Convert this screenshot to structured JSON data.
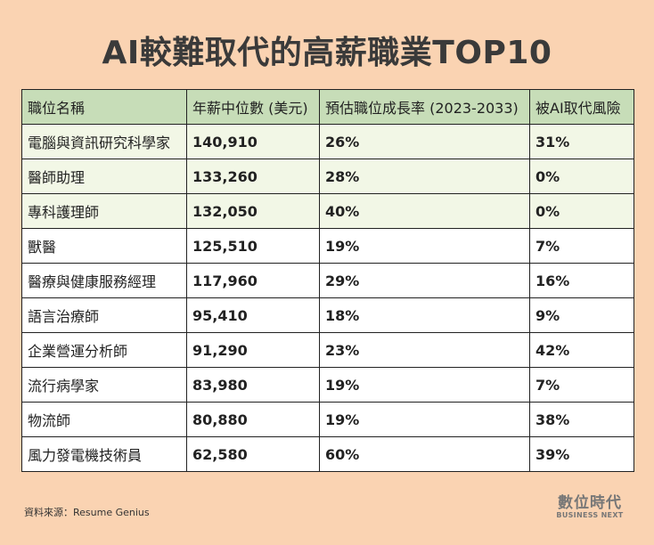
{
  "title": "AI較難取代的高薪職業TOP10",
  "source": "資料來源：Resume Genius",
  "logo": {
    "zh": "數位時代",
    "en": "BUSINESS NEXT"
  },
  "chart_data": {
    "type": "table",
    "title": "AI較難取代的高薪職業TOP10",
    "columns": [
      "職位名稱",
      "年薪中位數 (美元)",
      "預估職位成長率 (2023-2033)",
      "被AI取代風險"
    ],
    "rows": [
      [
        "電腦與資訊研究科學家",
        "140,910",
        "26%",
        "31%"
      ],
      [
        "醫師助理",
        "133,260",
        "28%",
        "0%"
      ],
      [
        "專科護理師",
        "132,050",
        "40%",
        "0%"
      ],
      [
        "獸醫",
        "125,510",
        "19%",
        "7%"
      ],
      [
        "醫療與健康服務經理",
        "117,960",
        "29%",
        "16%"
      ],
      [
        "語言治療師",
        "95,410",
        "18%",
        "9%"
      ],
      [
        "企業營運分析師",
        "91,290",
        "23%",
        "42%"
      ],
      [
        "流行病學家",
        "83,980",
        "19%",
        "7%"
      ],
      [
        "物流師",
        "80,880",
        "19%",
        "38%"
      ],
      [
        "風力發電機技術員",
        "62,580",
        "60%",
        "39%"
      ]
    ],
    "highlighted_rows": 3,
    "colors": {
      "background": "#fad3b2",
      "header": "#c7ddb8",
      "highlight_row": "#f2f7e6",
      "row": "#ffffff"
    }
  }
}
